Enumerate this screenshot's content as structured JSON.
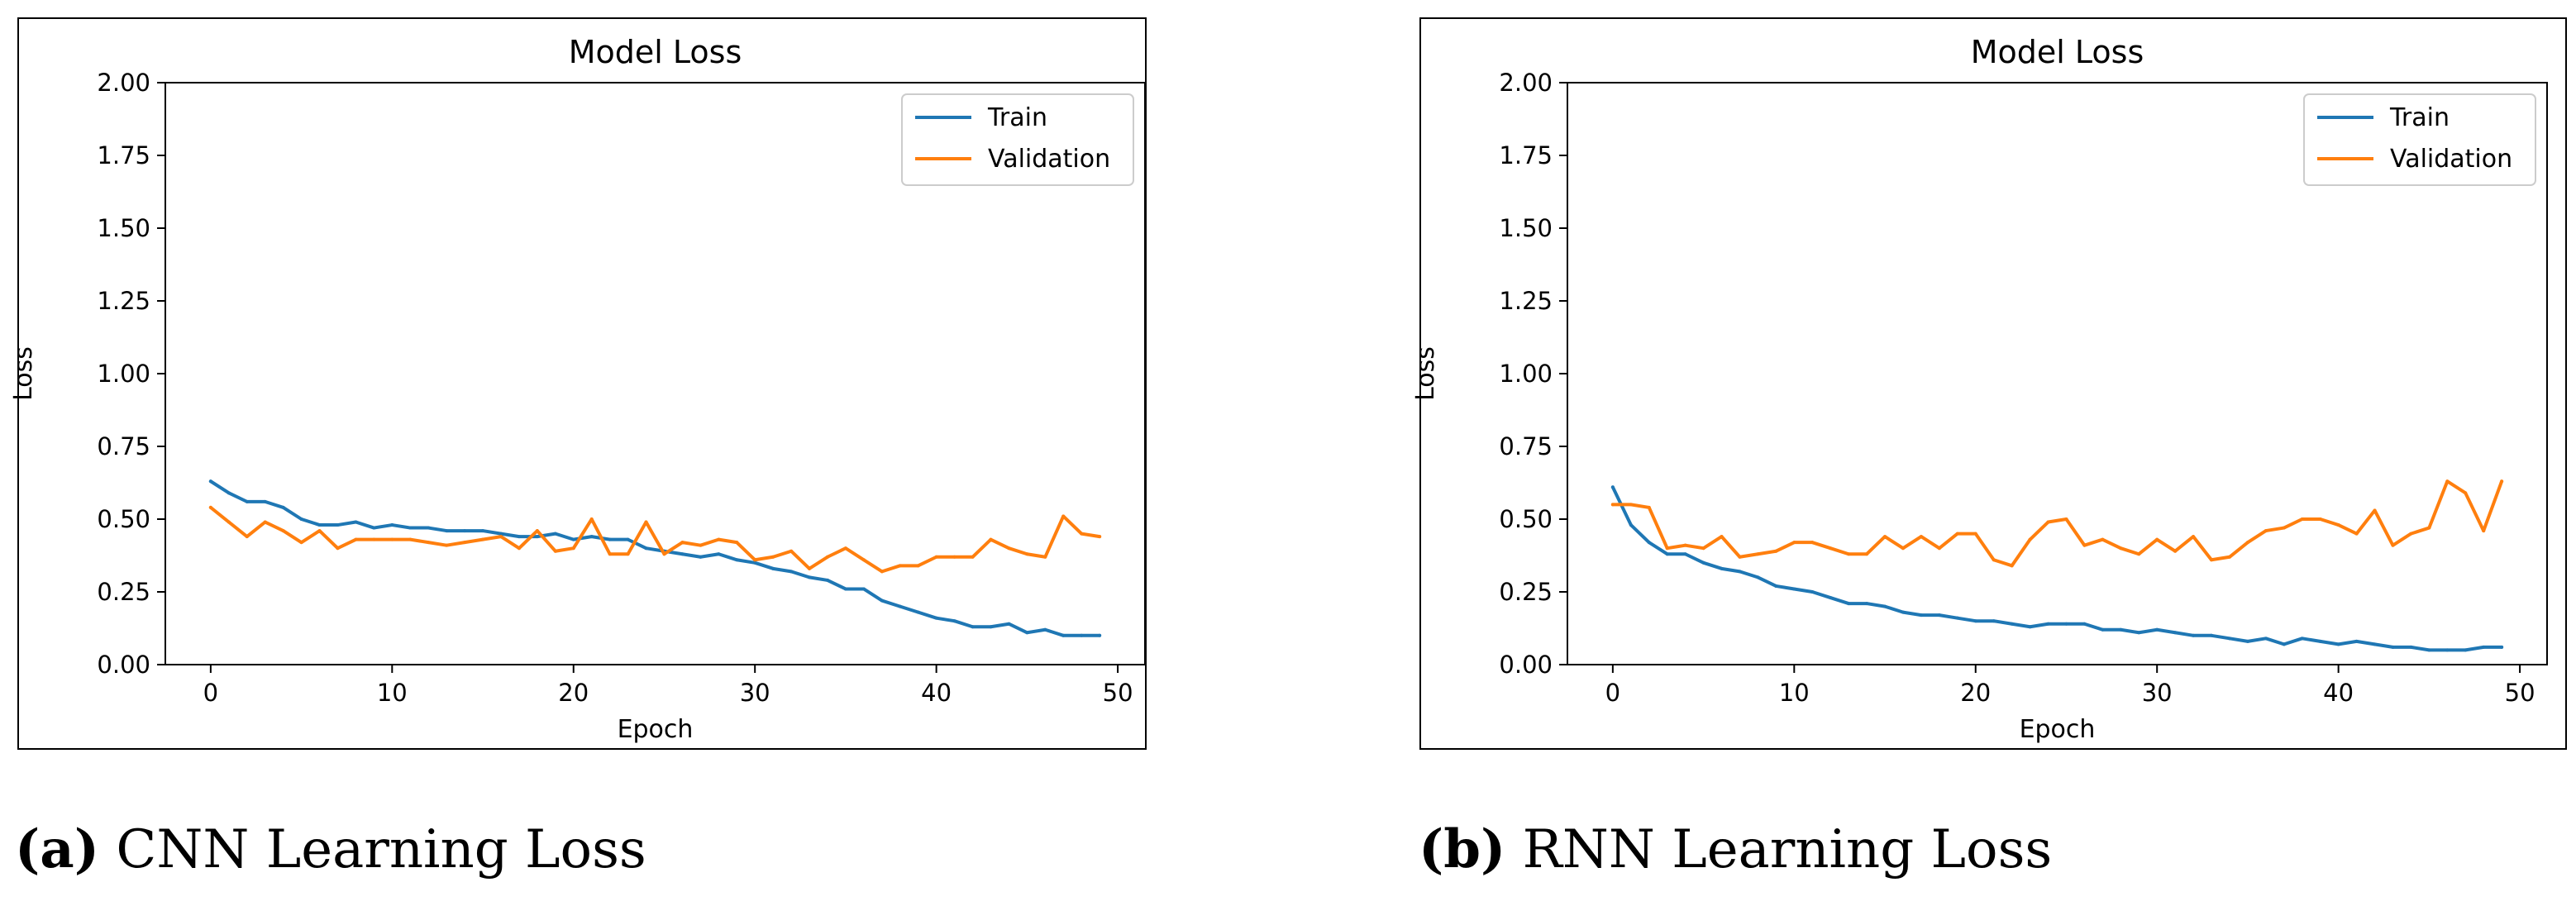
{
  "chart_data": [
    {
      "type": "line",
      "title": "Model Loss",
      "xlabel": "Epoch",
      "ylabel": "Loss",
      "xlim": [
        -2.5,
        51.5
      ],
      "ylim": [
        0,
        2.0
      ],
      "xticks": [
        "0",
        "10",
        "20",
        "30",
        "40",
        "50"
      ],
      "yticks": [
        "0.00",
        "0.25",
        "0.50",
        "0.75",
        "1.00",
        "1.25",
        "1.50",
        "1.75",
        "2.00"
      ],
      "legend_position": "top-right",
      "series": [
        {
          "name": "Train",
          "color": "#1f77b4",
          "values": [
            0.63,
            0.59,
            0.56,
            0.56,
            0.54,
            0.5,
            0.48,
            0.48,
            0.49,
            0.47,
            0.48,
            0.47,
            0.47,
            0.46,
            0.46,
            0.46,
            0.45,
            0.44,
            0.44,
            0.45,
            0.43,
            0.44,
            0.43,
            0.43,
            0.4,
            0.39,
            0.38,
            0.37,
            0.38,
            0.36,
            0.35,
            0.33,
            0.32,
            0.3,
            0.29,
            0.26,
            0.26,
            0.22,
            0.2,
            0.18,
            0.16,
            0.15,
            0.13,
            0.13,
            0.14,
            0.11,
            0.12,
            0.1,
            0.1,
            0.1
          ]
        },
        {
          "name": "Validation",
          "color": "#ff7f0e",
          "values": [
            0.54,
            0.49,
            0.44,
            0.49,
            0.46,
            0.42,
            0.46,
            0.4,
            0.43,
            0.43,
            0.43,
            0.43,
            0.42,
            0.41,
            0.42,
            0.43,
            0.44,
            0.4,
            0.46,
            0.39,
            0.4,
            0.5,
            0.38,
            0.38,
            0.49,
            0.38,
            0.42,
            0.41,
            0.43,
            0.42,
            0.36,
            0.37,
            0.39,
            0.33,
            0.37,
            0.4,
            0.36,
            0.32,
            0.34,
            0.34,
            0.37,
            0.37,
            0.37,
            0.43,
            0.4,
            0.38,
            0.37,
            0.51,
            0.45,
            0.44
          ]
        }
      ]
    },
    {
      "type": "line",
      "title": "Model Loss",
      "xlabel": "Epoch",
      "ylabel": "Loss",
      "xlim": [
        -2.5,
        51.5
      ],
      "ylim": [
        0,
        2.0
      ],
      "xticks": [
        "0",
        "10",
        "20",
        "30",
        "40",
        "50"
      ],
      "yticks": [
        "0.00",
        "0.25",
        "0.50",
        "0.75",
        "1.00",
        "1.25",
        "1.50",
        "1.75",
        "2.00"
      ],
      "legend_position": "top-right",
      "series": [
        {
          "name": "Train",
          "color": "#1f77b4",
          "values": [
            0.61,
            0.48,
            0.42,
            0.38,
            0.38,
            0.35,
            0.33,
            0.32,
            0.3,
            0.27,
            0.26,
            0.25,
            0.23,
            0.21,
            0.21,
            0.2,
            0.18,
            0.17,
            0.17,
            0.16,
            0.15,
            0.15,
            0.14,
            0.13,
            0.14,
            0.14,
            0.14,
            0.12,
            0.12,
            0.11,
            0.12,
            0.11,
            0.1,
            0.1,
            0.09,
            0.08,
            0.09,
            0.07,
            0.09,
            0.08,
            0.07,
            0.08,
            0.07,
            0.06,
            0.06,
            0.05,
            0.05,
            0.05,
            0.06,
            0.06
          ]
        },
        {
          "name": "Validation",
          "color": "#ff7f0e",
          "values": [
            0.55,
            0.55,
            0.54,
            0.4,
            0.41,
            0.4,
            0.44,
            0.37,
            0.38,
            0.39,
            0.42,
            0.42,
            0.4,
            0.38,
            0.38,
            0.44,
            0.4,
            0.44,
            0.4,
            0.45,
            0.45,
            0.36,
            0.34,
            0.43,
            0.49,
            0.5,
            0.41,
            0.43,
            0.4,
            0.38,
            0.43,
            0.39,
            0.44,
            0.36,
            0.37,
            0.42,
            0.46,
            0.47,
            0.5,
            0.5,
            0.48,
            0.45,
            0.53,
            0.41,
            0.45,
            0.47,
            0.63,
            0.59,
            0.46,
            0.63
          ]
        }
      ]
    }
  ],
  "captions": [
    {
      "tag": "(a)",
      "text": "CNN Learning Loss"
    },
    {
      "tag": "(b)",
      "text": "RNN Learning Loss"
    }
  ]
}
